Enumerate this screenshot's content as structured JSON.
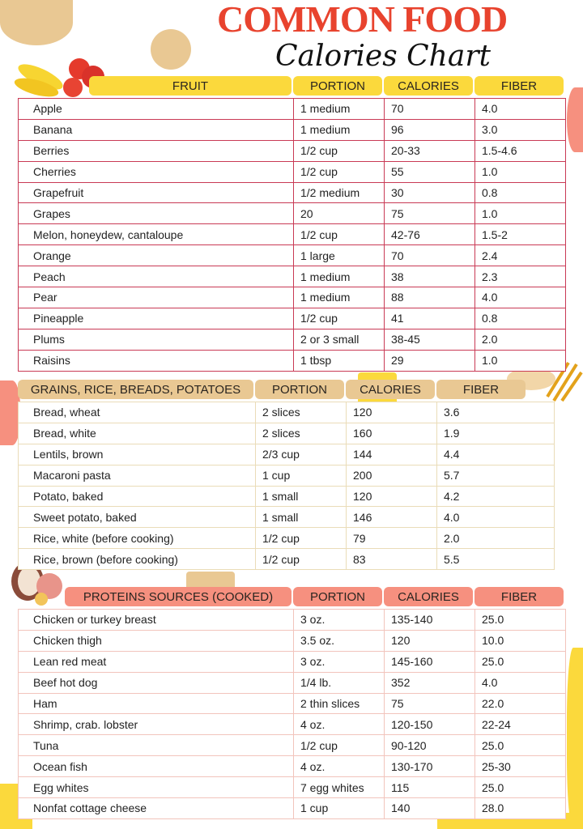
{
  "title": {
    "line1": "COMMON FOOD",
    "line2": "Calories Chart"
  },
  "colors": {
    "title_red": "#e8432e",
    "fruit_header": "#fbd93c",
    "fruit_border": "#c93a55",
    "grain_header": "#e9c893",
    "grain_border": "#eadcb8",
    "protein_header": "#f6907f",
    "protein_border": "#f2c4bc"
  },
  "icons": [
    "banana-apple-illustration",
    "bread-wheat-illustration",
    "meat-illustration"
  ],
  "sections": [
    {
      "id": "fruit",
      "headers": [
        "FRUIT",
        "PORTION",
        "CALORIES",
        "FIBER"
      ],
      "rows": [
        [
          "Apple",
          "1 medium",
          "70",
          "4.0"
        ],
        [
          "Banana",
          "1 medium",
          "96",
          "3.0"
        ],
        [
          "Berries",
          "1/2 cup",
          "20-33",
          "1.5-4.6"
        ],
        [
          "Cherries",
          "1/2 cup",
          "55",
          "1.0"
        ],
        [
          "Grapefruit",
          "1/2 medium",
          "30",
          "0.8"
        ],
        [
          "Grapes",
          "20",
          "75",
          "1.0"
        ],
        [
          "Melon, honeydew, cantaloupe",
          "1/2 cup",
          "42-76",
          "1.5-2"
        ],
        [
          "Orange",
          "1 large",
          "70",
          "2.4"
        ],
        [
          "Peach",
          "1 medium",
          "38",
          "2.3"
        ],
        [
          "Pear",
          "1 medium",
          "88",
          "4.0"
        ],
        [
          "Pineapple",
          "1/2 cup",
          "41",
          "0.8"
        ],
        [
          "Plums",
          "2 or 3  small",
          "38-45",
          "2.0"
        ],
        [
          "Raisins",
          "1 tbsp",
          "29",
          "1.0"
        ]
      ]
    },
    {
      "id": "grain",
      "headers": [
        "GRAINS, RICE, BREADS, POTATOES",
        "PORTION",
        "CALORIES",
        "FIBER"
      ],
      "rows": [
        [
          "Bread, wheat",
          "2 slices",
          "120",
          "3.6"
        ],
        [
          "Bread, white",
          "2 slices",
          "160",
          "1.9"
        ],
        [
          "Lentils, brown",
          "2/3 cup",
          "144",
          "4.4"
        ],
        [
          "Macaroni pasta",
          "1 cup",
          "200",
          "5.7"
        ],
        [
          "Potato, baked",
          "1 small",
          "120",
          "4.2"
        ],
        [
          "Sweet potato, baked",
          "1 small",
          "146",
          "4.0"
        ],
        [
          "Rice, white (before cooking)",
          "1/2 cup",
          "79",
          "2.0"
        ],
        [
          "Rice, brown (before cooking)",
          "1/2 cup",
          "83",
          "5.5"
        ]
      ]
    },
    {
      "id": "prot",
      "headers": [
        "PROTEINS SOURCES (COOKED)",
        "PORTION",
        "CALORIES",
        "FIBER"
      ],
      "rows": [
        [
          "Chicken or turkey breast",
          "3 oz.",
          "135-140",
          "25.0"
        ],
        [
          "Chicken thigh",
          "3.5 oz.",
          "120",
          "10.0"
        ],
        [
          "Lean red meat",
          "3 oz.",
          "145-160",
          "25.0"
        ],
        [
          "Beef hot dog",
          "1/4 lb.",
          "352",
          "4.0"
        ],
        [
          "Ham",
          "2 thin slices",
          "75",
          "22.0"
        ],
        [
          "Shrimp, crab. lobster",
          "4 oz.",
          "120-150",
          "22-24"
        ],
        [
          "Tuna",
          "1/2 cup",
          "90-120",
          "25.0"
        ],
        [
          "Ocean fish",
          "4 oz.",
          "130-170",
          "25-30"
        ],
        [
          "Egg whites",
          "7 egg whites",
          "115",
          "25.0"
        ],
        [
          "Nonfat cottage cheese",
          "1 cup",
          "140",
          "28.0"
        ]
      ]
    }
  ]
}
